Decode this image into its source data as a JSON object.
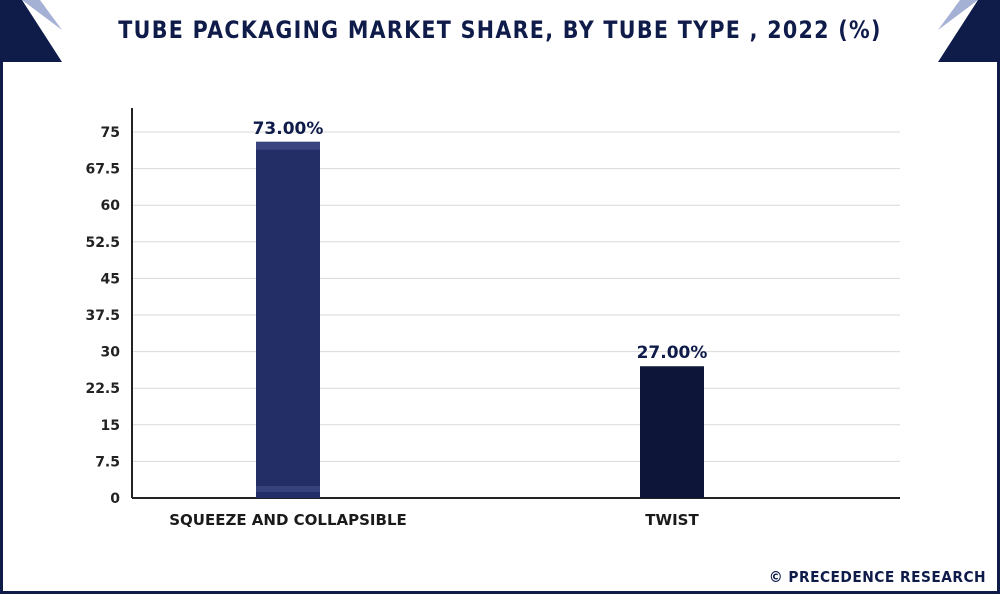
{
  "chart_data": {
    "type": "bar",
    "title": "TUBE PACKAGING MARKET SHARE, BY TUBE TYPE , 2022 (%)",
    "categories": [
      "SQUEEZE AND COLLAPSIBLE",
      "TWIST"
    ],
    "values": [
      73.0,
      27.0
    ],
    "data_labels": [
      "73.00%",
      "27.00%"
    ],
    "bar_colors": [
      "#232e67",
      "#0d1638"
    ],
    "y_ticks": [
      "0",
      "7.5",
      "15",
      "22.5",
      "30",
      "37.5",
      "45",
      "52.5",
      "60",
      "67.5",
      "75"
    ],
    "ylim": [
      0,
      75
    ],
    "grid": true,
    "xlabel": "",
    "ylabel": ""
  },
  "footer": {
    "credit": "© PRECEDENCE RESEARCH"
  },
  "colors": {
    "brand_dark": "#0f1c4a",
    "grid": "#d9d9d9",
    "axis": "#222222"
  }
}
